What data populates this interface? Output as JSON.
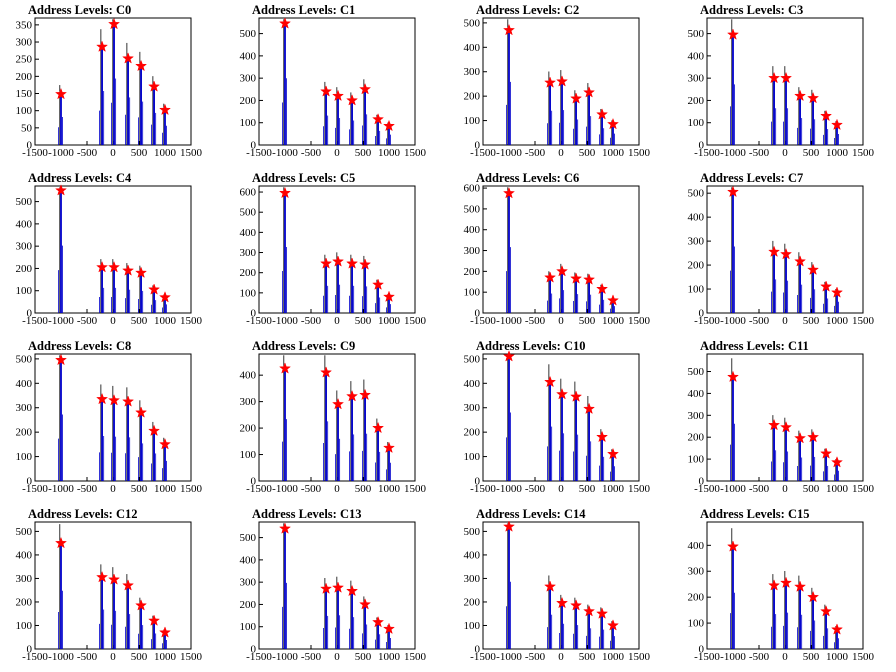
{
  "figure": {
    "x_ticks": [
      "-1500",
      "-1000",
      "-500",
      "0",
      "500",
      "1000",
      "1500"
    ],
    "colors": {
      "histogram": "#0000cc",
      "overflow": "#000000",
      "peak_marker": "#ff0000",
      "frame": "#000000"
    }
  },
  "chart_data": [
    {
      "type": "bar",
      "title": "Address Levels: C0",
      "xlim": [
        -1500,
        1500
      ],
      "ylim": [
        0,
        370
      ],
      "yticks": [
        "0",
        "50",
        "100",
        "150",
        "200",
        "250",
        "300",
        "350"
      ],
      "peaks": {
        "x": [
          -1000,
          -210,
          20,
          290,
          540,
          790,
          1000
        ],
        "y": [
          148,
          286,
          352,
          252,
          230,
          170,
          102
        ]
      }
    },
    {
      "type": "bar",
      "title": "Address Levels: C1",
      "xlim": [
        -1500,
        1500
      ],
      "ylim": [
        0,
        570
      ],
      "yticks": [
        "0",
        "100",
        "200",
        "300",
        "400",
        "500"
      ],
      "peaks": {
        "x": [
          -1000,
          -210,
          20,
          290,
          540,
          790,
          1000
        ],
        "y": [
          545,
          240,
          220,
          200,
          250,
          115,
          85
        ]
      }
    },
    {
      "type": "bar",
      "title": "Address Levels: C2",
      "xlim": [
        -1500,
        1500
      ],
      "ylim": [
        0,
        520
      ],
      "yticks": [
        "0",
        "100",
        "200",
        "300",
        "400",
        "500"
      ],
      "peaks": {
        "x": [
          -1000,
          -210,
          20,
          290,
          540,
          790,
          1000
        ],
        "y": [
          470,
          255,
          260,
          190,
          215,
          125,
          85
        ]
      }
    },
    {
      "type": "bar",
      "title": "Address Levels: C3",
      "xlim": [
        -1500,
        1500
      ],
      "ylim": [
        0,
        570
      ],
      "yticks": [
        "0",
        "100",
        "200",
        "300",
        "400",
        "500"
      ],
      "peaks": {
        "x": [
          -1000,
          -210,
          20,
          290,
          540,
          790,
          1000
        ],
        "y": [
          495,
          300,
          300,
          220,
          210,
          130,
          90
        ]
      }
    },
    {
      "type": "bar",
      "title": "Address Levels: C4",
      "xlim": [
        -1500,
        1500
      ],
      "ylim": [
        0,
        570
      ],
      "yticks": [
        "0",
        "100",
        "200",
        "300",
        "400",
        "500"
      ],
      "peaks": {
        "x": [
          -1000,
          -210,
          20,
          290,
          540,
          790,
          1000
        ],
        "y": [
          550,
          205,
          205,
          190,
          180,
          105,
          70
        ]
      }
    },
    {
      "type": "bar",
      "title": "Address Levels: C5",
      "xlim": [
        -1500,
        1500
      ],
      "ylim": [
        0,
        630
      ],
      "yticks": [
        "0",
        "100",
        "200",
        "300",
        "400",
        "500",
        "600"
      ],
      "peaks": {
        "x": [
          -1000,
          -210,
          20,
          290,
          540,
          790,
          1000
        ],
        "y": [
          595,
          245,
          255,
          245,
          240,
          140,
          80
        ]
      }
    },
    {
      "type": "bar",
      "title": "Address Levels: C6",
      "xlim": [
        -1500,
        1500
      ],
      "ylim": [
        0,
        610
      ],
      "yticks": [
        "0",
        "100",
        "200",
        "300",
        "400",
        "500",
        "600"
      ],
      "peaks": {
        "x": [
          -1000,
          -210,
          20,
          290,
          540,
          790,
          1000
        ],
        "y": [
          575,
          170,
          200,
          165,
          160,
          115,
          60
        ]
      }
    },
    {
      "type": "bar",
      "title": "Address Levels: C7",
      "xlim": [
        -1500,
        1500
      ],
      "ylim": [
        0,
        530
      ],
      "yticks": [
        "0",
        "100",
        "200",
        "300",
        "400",
        "500"
      ],
      "peaks": {
        "x": [
          -1000,
          -210,
          20,
          290,
          540,
          790,
          1000
        ],
        "y": [
          505,
          255,
          245,
          215,
          180,
          110,
          85
        ]
      }
    },
    {
      "type": "bar",
      "title": "Address Levels: C8",
      "xlim": [
        -1500,
        1500
      ],
      "ylim": [
        0,
        520
      ],
      "yticks": [
        "0",
        "100",
        "200",
        "300",
        "400",
        "500"
      ],
      "peaks": {
        "x": [
          -1000,
          -210,
          20,
          290,
          540,
          790,
          1000
        ],
        "y": [
          495,
          335,
          330,
          325,
          280,
          205,
          150
        ]
      }
    },
    {
      "type": "bar",
      "title": "Address Levels: C9",
      "xlim": [
        -1500,
        1500
      ],
      "ylim": [
        0,
        480
      ],
      "yticks": [
        "0",
        "100",
        "200",
        "300",
        "400"
      ],
      "peaks": {
        "x": [
          -1000,
          -210,
          20,
          290,
          540,
          790,
          1000
        ],
        "y": [
          425,
          410,
          290,
          320,
          325,
          200,
          125
        ]
      }
    },
    {
      "type": "bar",
      "title": "Address Levels: C10",
      "xlim": [
        -1500,
        1500
      ],
      "ylim": [
        0,
        520
      ],
      "yticks": [
        "0",
        "100",
        "200",
        "300",
        "400",
        "500"
      ],
      "peaks": {
        "x": [
          -1000,
          -210,
          20,
          290,
          540,
          790,
          1000
        ],
        "y": [
          510,
          405,
          355,
          345,
          295,
          180,
          110
        ]
      }
    },
    {
      "type": "bar",
      "title": "Address Levels: C11",
      "xlim": [
        -1500,
        1500
      ],
      "ylim": [
        0,
        580
      ],
      "yticks": [
        "0",
        "100",
        "200",
        "300",
        "400",
        "500"
      ],
      "peaks": {
        "x": [
          -1000,
          -210,
          20,
          290,
          540,
          790,
          1000
        ],
        "y": [
          475,
          255,
          245,
          195,
          200,
          125,
          85
        ]
      }
    },
    {
      "type": "bar",
      "title": "Address Levels: C12",
      "xlim": [
        -1500,
        1500
      ],
      "ylim": [
        0,
        540
      ],
      "yticks": [
        "0",
        "100",
        "200",
        "300",
        "400",
        "500"
      ],
      "peaks": {
        "x": [
          -1000,
          -210,
          20,
          290,
          540,
          790,
          1000
        ],
        "y": [
          450,
          305,
          295,
          270,
          185,
          120,
          70
        ]
      }
    },
    {
      "type": "bar",
      "title": "Address Levels: C13",
      "xlim": [
        -1500,
        1500
      ],
      "ylim": [
        0,
        570
      ],
      "yticks": [
        "0",
        "100",
        "200",
        "300",
        "400",
        "500"
      ],
      "peaks": {
        "x": [
          -1000,
          -210,
          20,
          290,
          540,
          790,
          1000
        ],
        "y": [
          540,
          270,
          275,
          260,
          200,
          120,
          90
        ]
      }
    },
    {
      "type": "bar",
      "title": "Address Levels: C14",
      "xlim": [
        -1500,
        1500
      ],
      "ylim": [
        0,
        540
      ],
      "yticks": [
        "0",
        "100",
        "200",
        "300",
        "400",
        "500"
      ],
      "peaks": {
        "x": [
          -1000,
          -210,
          20,
          290,
          540,
          790,
          1000
        ],
        "y": [
          520,
          265,
          195,
          185,
          160,
          150,
          100
        ]
      }
    },
    {
      "type": "bar",
      "title": "Address Levels: C15",
      "xlim": [
        -1500,
        1500
      ],
      "ylim": [
        0,
        490
      ],
      "yticks": [
        "0",
        "100",
        "200",
        "300",
        "400"
      ],
      "peaks": {
        "x": [
          -1000,
          -210,
          20,
          290,
          540,
          790,
          1000
        ],
        "y": [
          395,
          245,
          255,
          240,
          200,
          145,
          75
        ]
      }
    }
  ]
}
